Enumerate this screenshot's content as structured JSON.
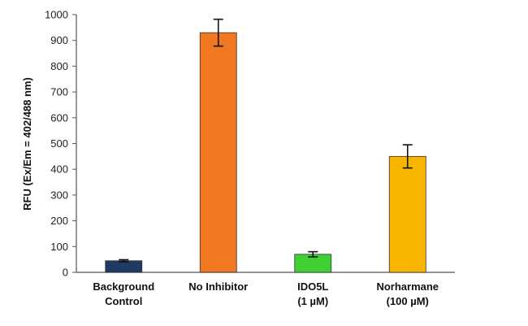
{
  "chart_data": {
    "type": "bar",
    "title": "",
    "xlabel": "",
    "ylabel": "RFU (Ex/Em = 402/488 nm)",
    "ylim": [
      0,
      1000
    ],
    "yticks": [
      0,
      100,
      200,
      300,
      400,
      500,
      600,
      700,
      800,
      900,
      1000
    ],
    "grid": false,
    "legend": "none",
    "categories": [
      [
        "Background",
        "Control"
      ],
      [
        "No Inhibitor"
      ],
      [
        "IDO5L",
        "(1 µM)"
      ],
      [
        "Norharmane",
        "(100 µM)"
      ]
    ],
    "values": [
      45,
      930,
      70,
      450
    ],
    "errors": [
      4,
      52,
      10,
      45
    ],
    "colors": [
      "#1f3b63",
      "#f07820",
      "#3fd133",
      "#f7b500"
    ]
  }
}
